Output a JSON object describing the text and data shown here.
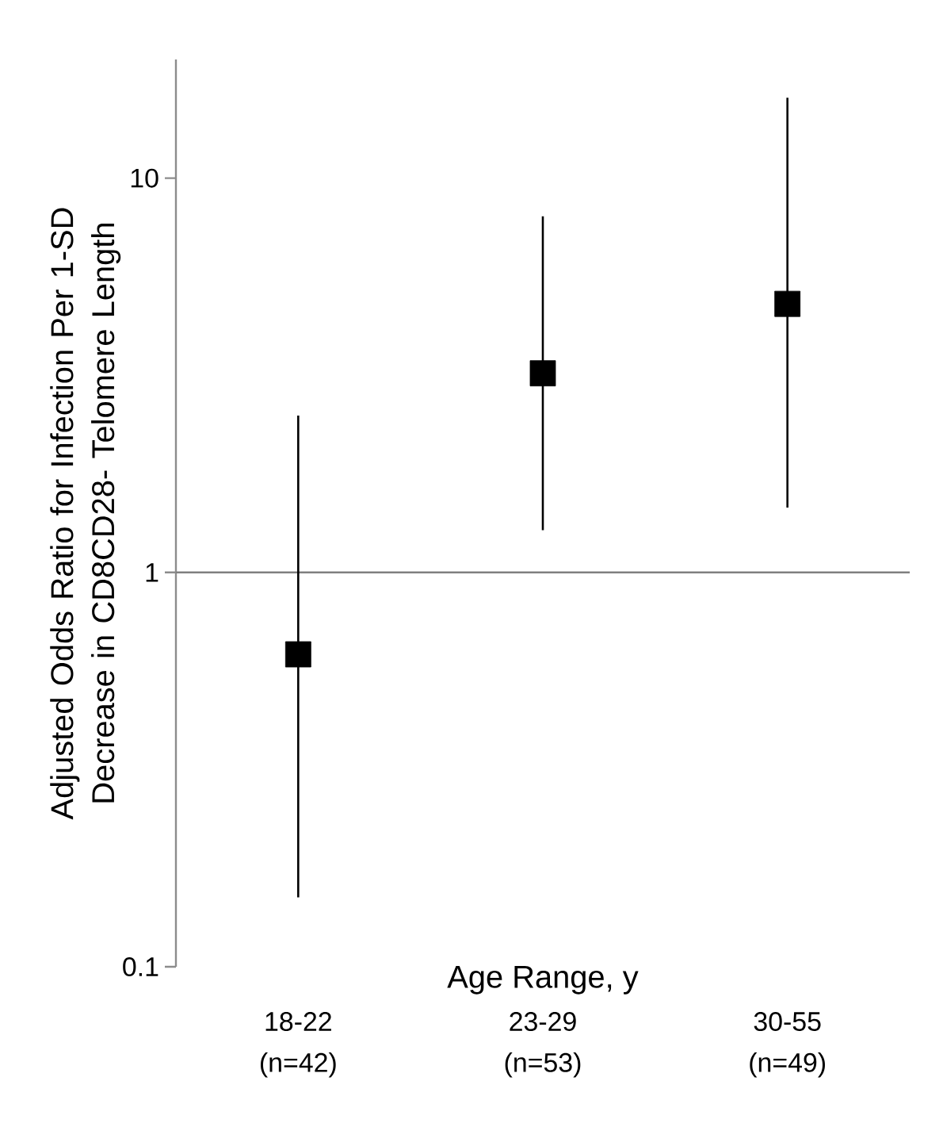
{
  "chart_data": {
    "type": "scatter",
    "xlabel": "Age Range, y",
    "ylabel": "Adjusted Odds Ratio for Infection Per 1-SD Decrease in CD8CD28- Telomere Length",
    "categories": [
      "18-22 (n=42)",
      "23-29 (n=53)",
      "30-55 (n=49)"
    ],
    "values": [
      0.62,
      3.2,
      4.8
    ],
    "errors": [
      [
        0.15,
        2.5
      ],
      [
        1.28,
        8.0
      ],
      [
        1.46,
        16.0
      ]
    ],
    "color": "#000000",
    "marker": "square",
    "log": "y",
    "ylim": [
      0.1,
      20
    ],
    "yticks": [
      0.1,
      1,
      10
    ],
    "ref_lines": [
      {
        "axis": "y",
        "value": 1,
        "color": "#808080"
      }
    ]
  }
}
